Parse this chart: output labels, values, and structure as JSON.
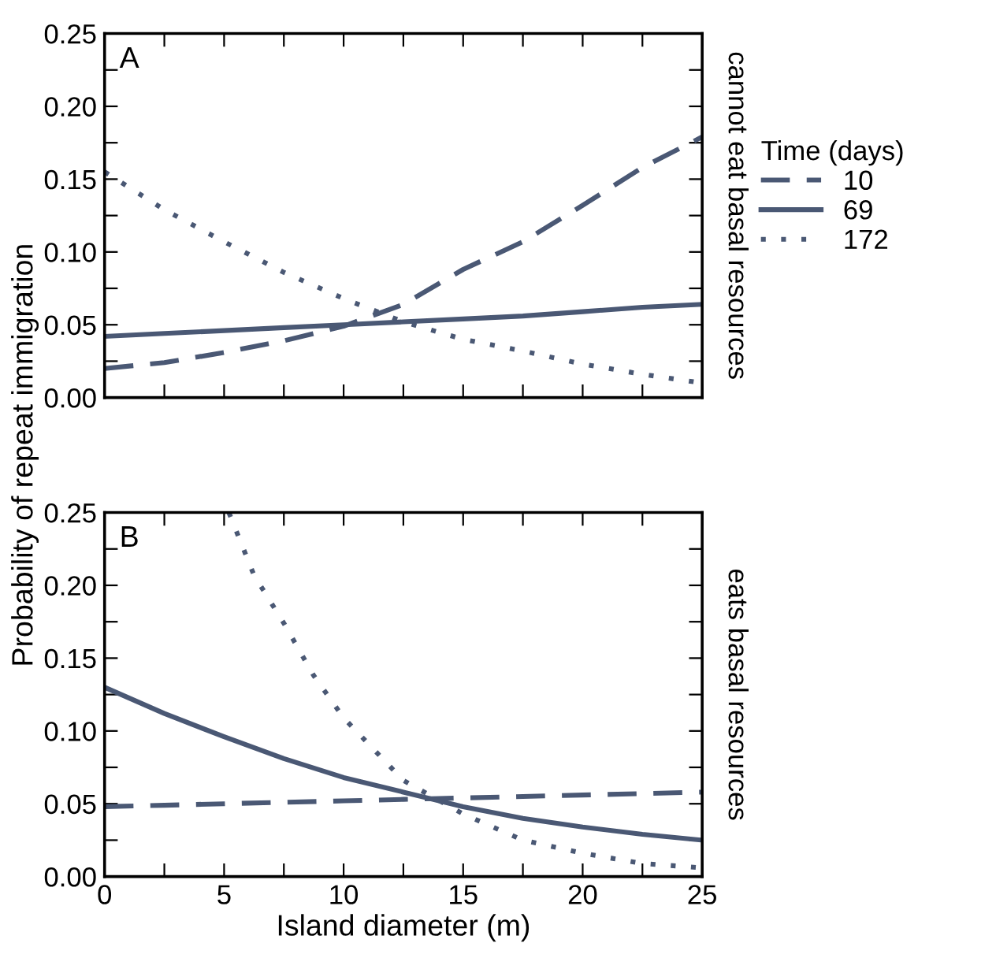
{
  "chart_data": [
    {
      "type": "line",
      "ylabel": "Probability of repeat immigration",
      "legend_title": "Time (days)",
      "legend": "right",
      "tick_labels": "y",
      "grid": false,
      "annotations": [
        "A",
        "cannot eat basal resources"
      ],
      "xlim": [
        0,
        25
      ],
      "ylim": [
        0,
        0.25
      ],
      "xticks": [
        0,
        {
          "value": 2.5,
          "label": null
        },
        5,
        {
          "value": 7.5,
          "label": null
        },
        10,
        {
          "value": 12.5,
          "label": null
        },
        15,
        {
          "value": 17.5,
          "label": null
        },
        20,
        {
          "value": 22.5,
          "label": null
        },
        25
      ],
      "yticks": [
        {
          "value": 0,
          "label": "0.00"
        },
        {
          "value": 0.025,
          "label": null
        },
        {
          "value": 0.05,
          "label": "0.05"
        },
        {
          "value": 0.075,
          "label": null
        },
        {
          "value": 0.1,
          "label": "0.10"
        },
        {
          "value": 0.125,
          "label": null
        },
        {
          "value": 0.15,
          "label": "0.15"
        },
        {
          "value": 0.175,
          "label": null
        },
        {
          "value": 0.2,
          "label": "0.20"
        },
        {
          "value": 0.225,
          "label": null
        },
        {
          "value": 0.25,
          "label": "0.25"
        }
      ],
      "x": [
        0,
        2.5,
        5,
        7.5,
        10,
        12.5,
        15,
        17.5,
        20,
        22.5,
        25
      ],
      "series": [
        {
          "name": "10",
          "color": "#4a5874",
          "line_style": "dashed",
          "values": [
            0.02,
            0.024,
            0.031,
            0.039,
            0.049,
            0.064,
            0.088,
            0.107,
            0.132,
            0.158,
            0.179
          ]
        },
        {
          "name": "69",
          "color": "#4a5874",
          "line_style": "solid",
          "values": [
            0.042,
            0.044,
            0.046,
            0.048,
            0.05,
            0.052,
            0.054,
            0.056,
            0.059,
            0.062,
            0.064
          ]
        },
        {
          "name": "172",
          "color": "#4a5874",
          "line_style": "dotted",
          "values": [
            0.155,
            0.129,
            0.107,
            0.086,
            0.068,
            0.052,
            0.04,
            0.032,
            0.023,
            0.016,
            0.01
          ]
        }
      ]
    },
    {
      "type": "line",
      "xlabel": "Island diameter (m)",
      "grid": false,
      "annotations": [
        "B",
        "eats basal resources"
      ],
      "xlim": [
        0,
        25
      ],
      "ylim": [
        0,
        0.25
      ],
      "xticks": [
        0,
        {
          "value": 2.5,
          "label": null
        },
        5,
        {
          "value": 7.5,
          "label": null
        },
        10,
        {
          "value": 12.5,
          "label": null
        },
        15,
        {
          "value": 17.5,
          "label": null
        },
        20,
        {
          "value": 22.5,
          "label": null
        },
        25
      ],
      "yticks": [
        {
          "value": 0,
          "label": "0.00"
        },
        {
          "value": 0.025,
          "label": null
        },
        {
          "value": 0.05,
          "label": "0.05"
        },
        {
          "value": 0.075,
          "label": null
        },
        {
          "value": 0.1,
          "label": "0.10"
        },
        {
          "value": 0.125,
          "label": null
        },
        {
          "value": 0.15,
          "label": "0.15"
        },
        {
          "value": 0.175,
          "label": null
        },
        {
          "value": 0.2,
          "label": "0.20"
        },
        {
          "value": 0.225,
          "label": null
        },
        {
          "value": 0.25,
          "label": "0.25"
        }
      ],
      "x": [
        0,
        2.5,
        5,
        7.5,
        10,
        12.5,
        15,
        17.5,
        20,
        22.5,
        25
      ],
      "series": [
        {
          "color": "#4a5874",
          "line_style": "dashed",
          "values": [
            0.048,
            0.049,
            0.05,
            0.051,
            0.052,
            0.053,
            0.054,
            0.055,
            0.056,
            0.057,
            0.058
          ]
        },
        {
          "color": "#4a5874",
          "line_style": "solid",
          "values": [
            0.13,
            0.112,
            0.096,
            0.081,
            0.068,
            0.058,
            0.048,
            0.04,
            0.034,
            0.029,
            0.025
          ]
        },
        {
          "color": "#4a5874",
          "line_style": "dotted",
          "x": [
            5.2,
            6.25,
            7.5,
            8.75,
            10,
            12.5,
            15,
            17.5,
            20,
            22.5,
            25
          ],
          "values": [
            0.25,
            0.207,
            0.174,
            0.138,
            0.109,
            0.066,
            0.043,
            0.025,
            0.016,
            0.009,
            0.006
          ]
        }
      ]
    }
  ]
}
